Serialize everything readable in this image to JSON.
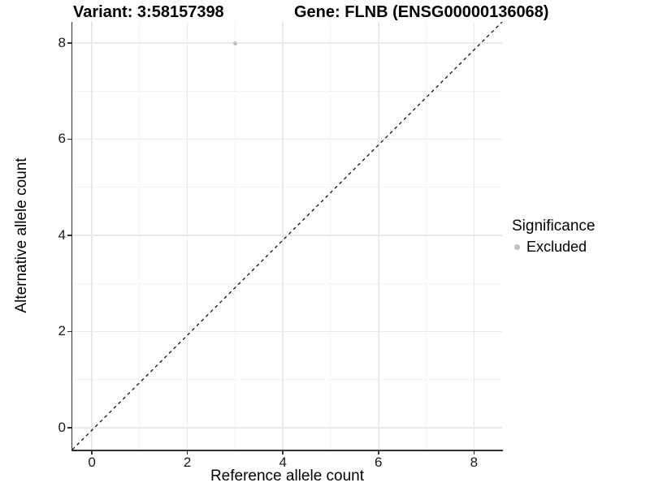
{
  "titles": {
    "variant": "Variant: 3:58157398",
    "gene": "Gene: FLNB (ENSG00000136068)"
  },
  "legend": {
    "title": "Significance",
    "items": [
      {
        "label": "Excluded",
        "color": "#bebebe",
        "marker": "circle"
      }
    ]
  },
  "axes": {
    "x": {
      "label": "Reference allele count"
    },
    "y": {
      "label": "Alternative allele count"
    }
  },
  "chart_data": {
    "type": "scatter",
    "title": "Variant: 3:58157398   Gene: FLNB (ENSG00000136068)",
    "xlabel": "Reference allele count",
    "ylabel": "Alternative allele count",
    "xlim": [
      -0.41,
      8.59
    ],
    "ylim": [
      -0.46,
      8.44
    ],
    "x_ticks": [
      0,
      2,
      4,
      6,
      8
    ],
    "y_ticks": [
      0,
      2,
      4,
      6,
      8
    ],
    "x_minor_ticks": [
      1,
      3,
      5,
      7
    ],
    "y_minor_ticks": [
      1,
      3,
      5,
      7
    ],
    "grid": true,
    "legend_position": "right",
    "series": [
      {
        "name": "Excluded",
        "color": "#bebebe",
        "points": [
          {
            "x": 3,
            "y": 8
          }
        ]
      }
    ],
    "reference_line": {
      "kind": "identity",
      "style": "dashed",
      "color": "#000000"
    },
    "colors": {
      "grid_major": "#e9e9e9",
      "grid_minor": "#f2f2f2",
      "axis_line": "#333333",
      "tick_text": "#1a1a1a"
    }
  }
}
